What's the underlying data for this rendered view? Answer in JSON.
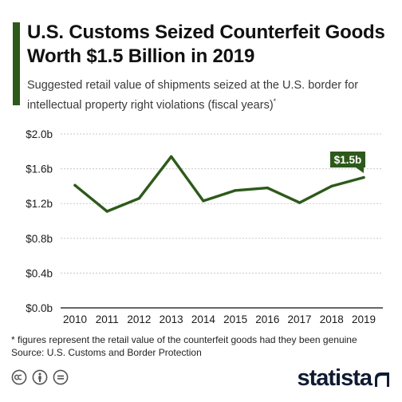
{
  "header": {
    "title": "U.S. Customs Seized Counterfeit Goods Worth $1.5 Billion in 2019",
    "subtitle": "Suggested retail value of shipments seized at the U.S. border for intellectual property right violations (fiscal years)",
    "subtitle_mark": "*"
  },
  "footer": {
    "footnote": "* figures represent the retail value of the counterfeit goods had they been genuine",
    "source": "Source: U.S. Customs and Border Protection",
    "brand": "statista"
  },
  "icons": {
    "license": [
      "creative-commons-icon",
      "attribution-icon",
      "no-derivatives-icon"
    ],
    "brand": "statista-logo-icon"
  },
  "colors": {
    "accent": "#2d5a1b",
    "line": "#2d5a1b",
    "callout": "#2d5a1b",
    "grid": "#c8c8c8",
    "text": "#1a1a1a",
    "brand_text": "#0f1b33"
  },
  "chart_data": {
    "type": "line",
    "categories": [
      "2010",
      "2011",
      "2012",
      "2013",
      "2014",
      "2015",
      "2016",
      "2017",
      "2018",
      "2019"
    ],
    "series": [
      {
        "values": [
          1.41,
          1.11,
          1.26,
          1.74,
          1.23,
          1.35,
          1.38,
          1.21,
          1.4,
          1.5
        ]
      }
    ],
    "ylim": [
      0,
      2.0
    ],
    "yticks": [
      0,
      0.4,
      0.8,
      1.2,
      1.6,
      2.0
    ],
    "ytick_labels": [
      "$0.0b",
      "$0.4b",
      "$0.8b",
      "$1.2b",
      "$1.6b",
      "$2.0b"
    ],
    "grid": true,
    "legend": "none",
    "annotations": [
      {
        "category": "2019",
        "label": "$1.5b"
      }
    ],
    "xlabel": "",
    "ylabel": ""
  }
}
